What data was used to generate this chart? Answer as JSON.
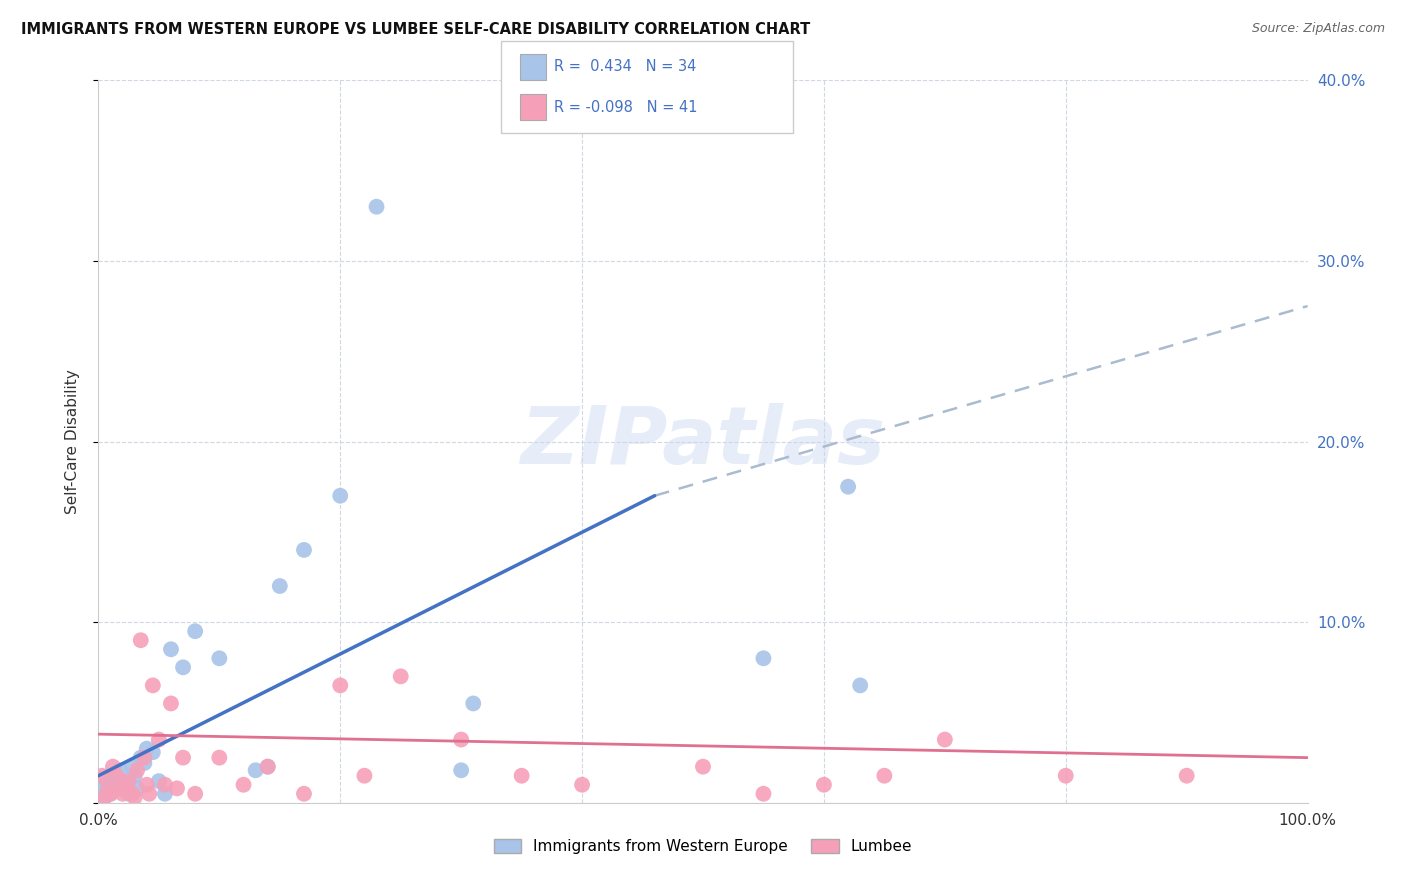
{
  "title": "IMMIGRANTS FROM WESTERN EUROPE VS LUMBEE SELF-CARE DISABILITY CORRELATION CHART",
  "source": "Source: ZipAtlas.com",
  "ylabel": "Self-Care Disability",
  "legend1_label": "Immigrants from Western Europe",
  "legend2_label": "Lumbee",
  "r1": 0.434,
  "n1": 34,
  "r2": -0.098,
  "n2": 41,
  "color_blue": "#a8c4e8",
  "color_pink": "#f5a0b8",
  "color_blue_line": "#4472c4",
  "color_pink_line": "#e07090",
  "color_dashed": "#aabbd0",
  "watermark_text": "ZIPatlas",
  "blue_line_x_start": 0,
  "blue_line_x_solid_end": 46,
  "blue_line_x_end": 100,
  "blue_line_y_start": 1.5,
  "blue_line_y_solid_end": 17.0,
  "blue_line_y_end": 27.5,
  "pink_line_x_start": 0,
  "pink_line_x_end": 100,
  "pink_line_y_start": 3.8,
  "pink_line_y_end": 2.5,
  "blue_points_x": [
    0.3,
    0.5,
    0.7,
    1.0,
    1.2,
    1.5,
    1.8,
    2.0,
    2.3,
    2.5,
    2.8,
    3.0,
    3.2,
    3.5,
    3.8,
    4.0,
    4.5,
    5.0,
    5.5,
    6.0,
    7.0,
    8.0,
    10.0,
    13.0,
    14.0,
    15.0,
    17.0,
    20.0,
    23.0,
    30.0,
    31.0,
    55.0,
    62.0,
    63.0
  ],
  "blue_points_y": [
    0.8,
    0.3,
    1.2,
    0.5,
    1.5,
    1.0,
    1.8,
    1.2,
    1.0,
    0.5,
    2.0,
    1.5,
    0.8,
    2.5,
    2.2,
    3.0,
    2.8,
    1.2,
    0.5,
    8.5,
    7.5,
    9.5,
    8.0,
    1.8,
    2.0,
    12.0,
    14.0,
    17.0,
    33.0,
    1.8,
    5.5,
    8.0,
    17.5,
    6.5
  ],
  "pink_points_x": [
    0.3,
    0.5,
    0.8,
    1.0,
    1.2,
    1.5,
    1.8,
    2.0,
    2.2,
    2.5,
    2.8,
    3.0,
    3.2,
    3.5,
    3.8,
    4.0,
    4.2,
    4.5,
    5.0,
    5.5,
    6.0,
    6.5,
    7.0,
    8.0,
    10.0,
    12.0,
    14.0,
    17.0,
    20.0,
    22.0,
    25.0,
    30.0,
    35.0,
    40.0,
    50.0,
    55.0,
    60.0,
    65.0,
    70.0,
    80.0,
    90.0
  ],
  "pink_points_y": [
    1.5,
    0.3,
    0.8,
    0.5,
    2.0,
    1.5,
    0.8,
    0.5,
    0.8,
    1.2,
    0.5,
    0.3,
    1.8,
    9.0,
    2.5,
    1.0,
    0.5,
    6.5,
    3.5,
    1.0,
    5.5,
    0.8,
    2.5,
    0.5,
    2.5,
    1.0,
    2.0,
    0.5,
    6.5,
    1.5,
    7.0,
    3.5,
    1.5,
    1.0,
    2.0,
    0.5,
    1.0,
    1.5,
    3.5,
    1.5,
    1.5
  ],
  "xlim": [
    0,
    100
  ],
  "ylim": [
    0,
    40
  ],
  "yticks": [
    0,
    10,
    20,
    30,
    40
  ],
  "ytick_labels": [
    "",
    "10.0%",
    "20.0%",
    "30.0%",
    "40.0%"
  ],
  "xtick_positions": [
    0,
    20,
    40,
    60,
    80,
    100
  ],
  "xtick_labels": [
    "0.0%",
    "",
    "",
    "",
    "",
    "100.0%"
  ]
}
